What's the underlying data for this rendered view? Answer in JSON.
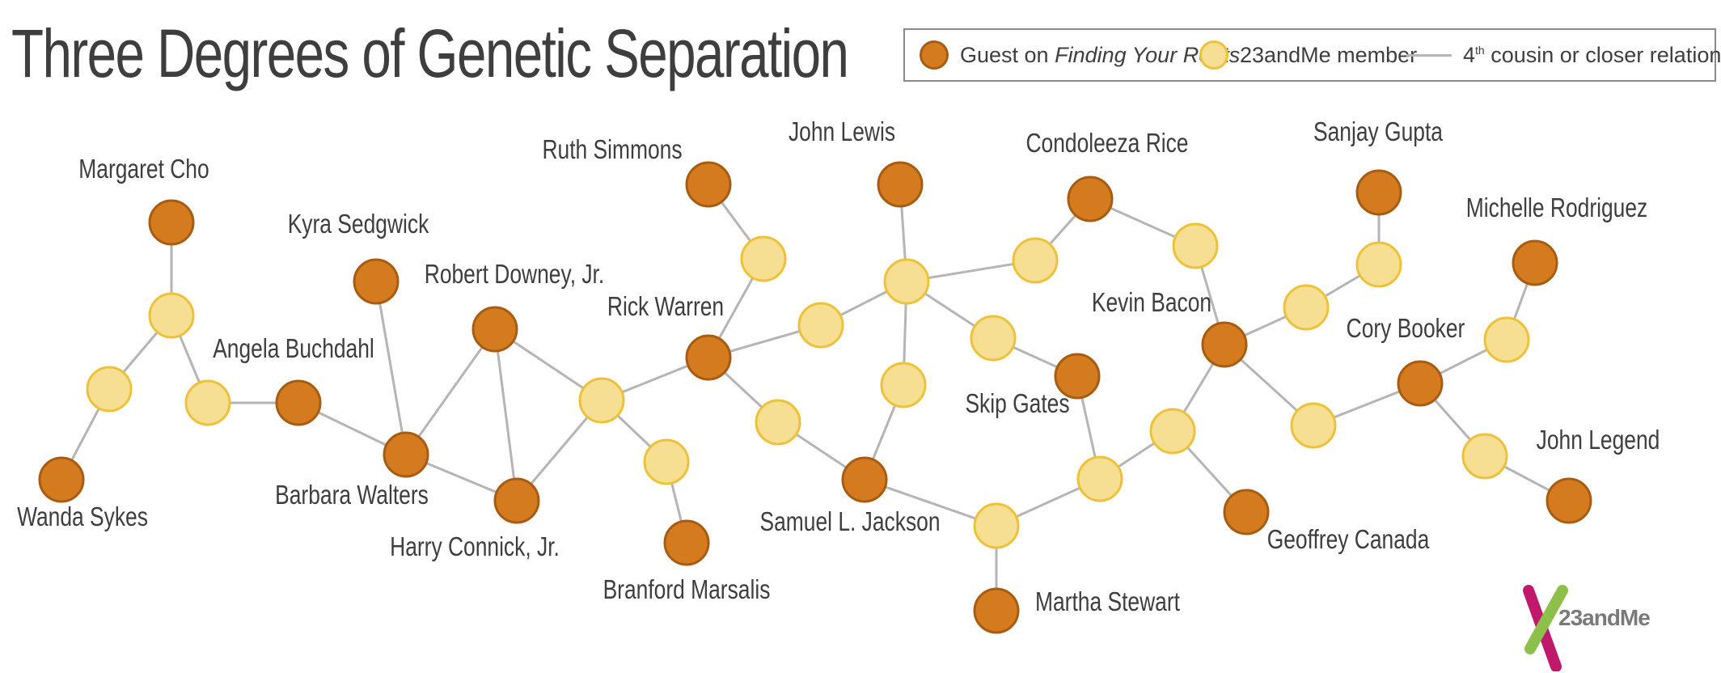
{
  "title": "Three Degrees of Genetic Separation",
  "legend": {
    "guest_label_prefix": "Guest on ",
    "guest_label_show": "Finding Your Roots",
    "member_label": "23andMe member",
    "relationship_label_num": "4",
    "relationship_label_sup": "th",
    "relationship_label_rest": " cousin or closer relationship"
  },
  "colors": {
    "guest_fill": "#d47b1f",
    "guest_stroke": "#a85c12",
    "member_fill": "#f6df93",
    "member_stroke": "#edc23a",
    "edge": "#b5b5b5",
    "text": "#3f3e3e"
  },
  "network": {
    "guests": [
      {
        "id": "margaret-cho",
        "label": "Margaret Cho"
      },
      {
        "id": "wanda-sykes",
        "label": "Wanda Sykes"
      },
      {
        "id": "angela-buchdahl",
        "label": "Angela Buchdahl"
      },
      {
        "id": "kyra-sedgwick",
        "label": "Kyra Sedgwick"
      },
      {
        "id": "barbara-walters",
        "label": "Barbara Walters"
      },
      {
        "id": "robert-downey-jr",
        "label": "Robert Downey, Jr."
      },
      {
        "id": "harry-connick-jr",
        "label": "Harry Connick, Jr."
      },
      {
        "id": "ruth-simmons",
        "label": "Ruth Simmons"
      },
      {
        "id": "rick-warren",
        "label": "Rick Warren"
      },
      {
        "id": "branford-marsalis",
        "label": "Branford Marsalis"
      },
      {
        "id": "john-lewis",
        "label": "John Lewis"
      },
      {
        "id": "samuel-l-jackson",
        "label": "Samuel L. Jackson"
      },
      {
        "id": "condoleeza-rice",
        "label": "Condoleeza Rice"
      },
      {
        "id": "skip-gates",
        "label": "Skip Gates"
      },
      {
        "id": "martha-stewart",
        "label": "Martha Stewart"
      },
      {
        "id": "kevin-bacon",
        "label": "Kevin Bacon"
      },
      {
        "id": "sanjay-gupta",
        "label": "Sanjay Gupta"
      },
      {
        "id": "geoffrey-canada",
        "label": "Geoffrey Canada"
      },
      {
        "id": "cory-booker",
        "label": "Cory Booker"
      },
      {
        "id": "michelle-rodriguez",
        "label": "Michelle Rodriguez"
      },
      {
        "id": "john-legend",
        "label": "John Legend"
      }
    ],
    "member_count": 24,
    "edges": [
      [
        "margaret-cho",
        "m1"
      ],
      [
        "m1",
        "m2"
      ],
      [
        "m2",
        "wanda-sykes"
      ],
      [
        "m1",
        "m3"
      ],
      [
        "m3",
        "angela-buchdahl"
      ],
      [
        "angela-buchdahl",
        "barbara-walters"
      ],
      [
        "kyra-sedgwick",
        "barbara-walters"
      ],
      [
        "barbara-walters",
        "robert-downey-jr"
      ],
      [
        "barbara-walters",
        "harry-connick-jr"
      ],
      [
        "robert-downey-jr",
        "harry-connick-jr"
      ],
      [
        "robert-downey-jr",
        "m4"
      ],
      [
        "harry-connick-jr",
        "m4"
      ],
      [
        "m4",
        "m5"
      ],
      [
        "m5",
        "branford-marsalis"
      ],
      [
        "m4",
        "rick-warren"
      ],
      [
        "rick-warren",
        "m6"
      ],
      [
        "m6",
        "ruth-simmons"
      ],
      [
        "rick-warren",
        "m7"
      ],
      [
        "m7",
        "m8"
      ],
      [
        "m8",
        "john-lewis"
      ],
      [
        "m8",
        "m9"
      ],
      [
        "m9",
        "condoleeza-rice"
      ],
      [
        "m8",
        "m10"
      ],
      [
        "m10",
        "skip-gates"
      ],
      [
        "m8",
        "m11"
      ],
      [
        "m11",
        "samuel-l-jackson"
      ],
      [
        "rick-warren",
        "m12"
      ],
      [
        "m12",
        "samuel-l-jackson"
      ],
      [
        "samuel-l-jackson",
        "m13"
      ],
      [
        "m13",
        "martha-stewart"
      ],
      [
        "m13",
        "m14"
      ],
      [
        "m14",
        "skip-gates"
      ],
      [
        "m14",
        "m15"
      ],
      [
        "m15",
        "kevin-bacon"
      ],
      [
        "m15",
        "geoffrey-canada"
      ],
      [
        "condoleeza-rice",
        "m16"
      ],
      [
        "m16",
        "kevin-bacon"
      ],
      [
        "kevin-bacon",
        "m17"
      ],
      [
        "m17",
        "m18"
      ],
      [
        "m18",
        "sanjay-gupta"
      ],
      [
        "kevin-bacon",
        "m19"
      ],
      [
        "m19",
        "cory-booker"
      ],
      [
        "cory-booker",
        "m20"
      ],
      [
        "m20",
        "michelle-rodriguez"
      ],
      [
        "cory-booker",
        "m21"
      ],
      [
        "m21",
        "john-legend"
      ]
    ]
  },
  "logo": {
    "text": "23andMe"
  }
}
